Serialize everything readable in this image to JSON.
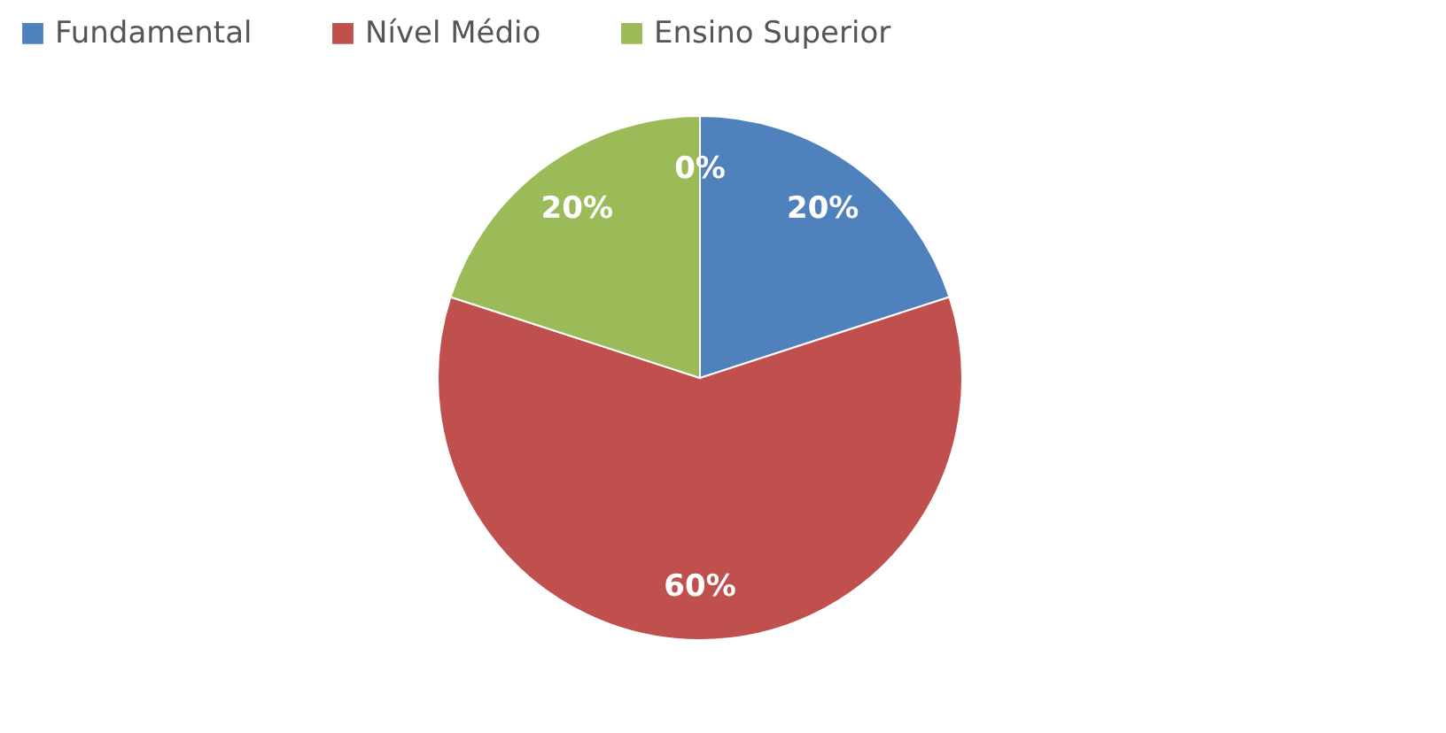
{
  "chart_data": {
    "type": "pie",
    "categories": [
      "Fundamental",
      "Nível Médio",
      "Ensino Superior",
      null
    ],
    "values": [
      20,
      60,
      20,
      0
    ],
    "colors": [
      "#4f81bd",
      "#c0504d",
      "#9bbb59",
      "#8064a2"
    ],
    "value_labels": [
      "20%",
      "60%",
      "20%",
      "0%"
    ],
    "legend": "top"
  }
}
